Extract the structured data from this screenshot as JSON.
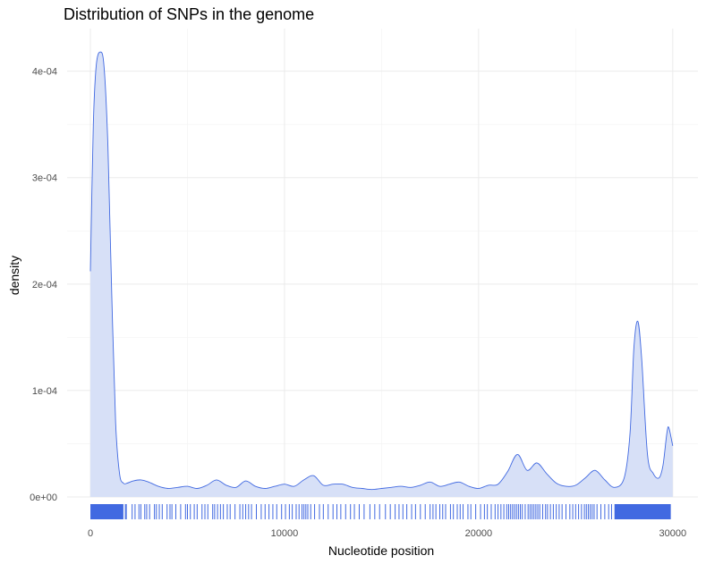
{
  "chart_data": {
    "type": "area",
    "title": "Distribution of SNPs in the genome",
    "xlabel": "Nucleotide position",
    "ylabel": "density",
    "xlim": [
      -1200,
      31300
    ],
    "ylim": [
      0,
      0.00044
    ],
    "x_ticks": [
      0,
      10000,
      20000,
      30000
    ],
    "x_tick_labels": [
      "0",
      "10000",
      "20000",
      "30000"
    ],
    "y_ticks": [
      0,
      0.0001,
      0.0002,
      0.0003,
      0.0004
    ],
    "y_tick_labels": [
      "0e+00",
      "1e-04",
      "2e-04",
      "3e-04",
      "4e-04"
    ],
    "grid": true,
    "fill_color": "#d7e0f7",
    "line_color": "#4169e1",
    "rug_color": "#4169e1",
    "density": {
      "x": [
        0,
        150,
        300,
        500,
        700,
        900,
        1100,
        1300,
        1500,
        1700,
        1900,
        2200,
        2600,
        3000,
        3500,
        4000,
        4500,
        5000,
        5500,
        6000,
        6500,
        7000,
        7500,
        8000,
        8500,
        9000,
        9500,
        10000,
        10500,
        11000,
        11500,
        12000,
        12500,
        13000,
        13500,
        14000,
        14500,
        15000,
        15500,
        16000,
        16500,
        17000,
        17500,
        18000,
        18500,
        19000,
        19500,
        20000,
        20500,
        21000,
        21500,
        22000,
        22500,
        23000,
        23500,
        24000,
        24500,
        25000,
        25500,
        26000,
        26500,
        27000,
        27500,
        27800,
        28000,
        28200,
        28400,
        28700,
        29000,
        29300,
        29500,
        29700,
        29800,
        30000
      ],
      "y": [
        0.000212,
        0.00035,
        0.000405,
        0.000418,
        0.000405,
        0.00033,
        0.00019,
        7e-05,
        2.2e-05,
        1.3e-05,
        1.3e-05,
        1.5e-05,
        1.6e-05,
        1.4e-05,
        1e-05,
        8e-06,
        9e-06,
        1e-05,
        8e-06,
        1.1e-05,
        1.6e-05,
        1.1e-05,
        9e-06,
        1.5e-05,
        1e-05,
        8e-06,
        1e-05,
        1.2e-05,
        1e-05,
        1.6e-05,
        2e-05,
        1.1e-05,
        1.2e-05,
        1.2e-05,
        9e-06,
        8e-06,
        7e-06,
        8e-06,
        9e-06,
        1e-05,
        9e-06,
        1.1e-05,
        1.4e-05,
        1e-05,
        1.2e-05,
        1.4e-05,
        1e-05,
        8e-06,
        1.1e-05,
        1.2e-05,
        2.4e-05,
        4e-05,
        2.5e-05,
        3.2e-05,
        2.2e-05,
        1.3e-05,
        1e-05,
        1.1e-05,
        1.8e-05,
        2.5e-05,
        1.6e-05,
        9e-06,
        1.8e-05,
        6e-05,
        0.00014,
        0.000165,
        0.00013,
        4e-05,
        2.2e-05,
        1.8e-05,
        3e-05,
        6e-05,
        6.5e-05,
        4.8e-05
      ]
    },
    "rug": {
      "range": [
        0,
        29900
      ],
      "dense_segments": [
        [
          0,
          1700
        ],
        [
          27000,
          29900
        ]
      ],
      "positions": [
        1800,
        1850,
        2150,
        2300,
        2500,
        2600,
        2800,
        2900,
        3050,
        3300,
        3400,
        3550,
        3700,
        3950,
        4100,
        4200,
        4400,
        4650,
        4900,
        5000,
        5150,
        5350,
        5500,
        5750,
        5900,
        6050,
        6300,
        6400,
        6550,
        6700,
        6850,
        7050,
        7200,
        7450,
        7700,
        7850,
        8000,
        8150,
        8300,
        8550,
        8800,
        9000,
        9200,
        9400,
        9600,
        9850,
        10050,
        10250,
        10400,
        10600,
        10750,
        10900,
        11000,
        11100,
        11200,
        11350,
        11550,
        11800,
        12000,
        12250,
        12500,
        12700,
        12900,
        13150,
        13400,
        13600,
        13850,
        14100,
        14400,
        14650,
        14900,
        15200,
        15450,
        15700,
        15900,
        16100,
        16300,
        16550,
        16750,
        17000,
        17250,
        17500,
        17650,
        17800,
        18000,
        18150,
        18300,
        18550,
        18700,
        18900,
        19050,
        19200,
        19450,
        19600,
        19850,
        20100,
        20300,
        20450,
        20650,
        20850,
        21000,
        21150,
        21300,
        21450,
        21550,
        21650,
        21750,
        21850,
        21950,
        22050,
        22150,
        22250,
        22400,
        22550,
        22650,
        22750,
        22850,
        22950,
        23050,
        23150,
        23300,
        23450,
        23550,
        23700,
        23850,
        24000,
        24150,
        24300,
        24500,
        24700,
        24850,
        25000,
        25150,
        25300,
        25450,
        25550,
        25650,
        25750,
        25850,
        25950,
        26100,
        26300,
        26500,
        26700,
        26850
      ]
    }
  }
}
